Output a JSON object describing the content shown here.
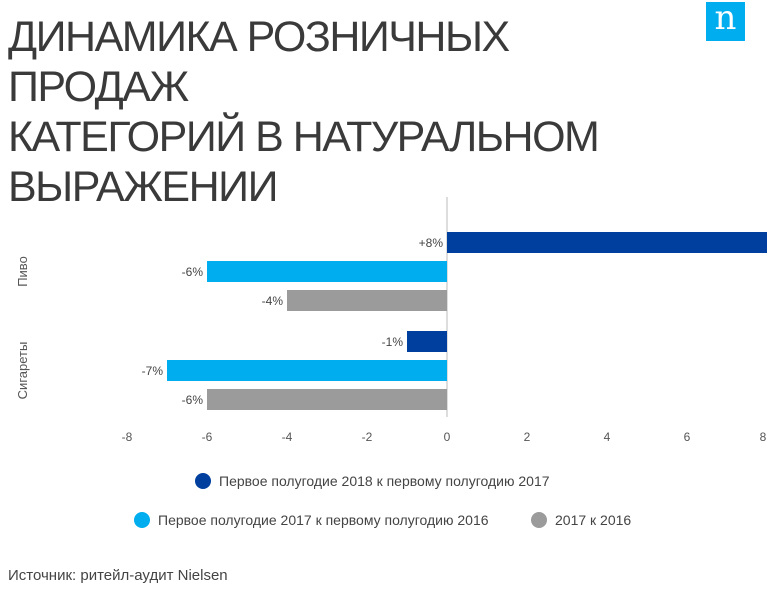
{
  "title_lines": [
    "ДИНАМИКА РОЗНИЧНЫХ ПРОДАЖ",
    "КАТЕГОРИЙ В НАТУРАЛЬНОМ",
    "ВЫРАЖЕНИИ"
  ],
  "logo_letter": "n",
  "source": "Источник: ритейл-аудит Nielsen",
  "chart_data": {
    "type": "bar",
    "orientation": "horizontal",
    "categories": [
      "Пиво",
      "Сигареты"
    ],
    "series": [
      {
        "name": "Первое полугодие 2018 к первому полугодию 2017",
        "color": "#003f9e",
        "values": [
          8,
          -1
        ],
        "labels": [
          "+8%",
          "-1%"
        ]
      },
      {
        "name": "Первое полугодие 2017 к первому полугодию 2016",
        "color": "#00aeef",
        "values": [
          -6,
          -7
        ],
        "labels": [
          "-6%",
          "-7%"
        ]
      },
      {
        "name": "2017 к 2016",
        "color": "#9b9b9b",
        "values": [
          -4,
          -6
        ],
        "labels": [
          "-4%",
          "-6%"
        ]
      }
    ],
    "xlim": [
      -8,
      8
    ],
    "xticks": [
      -8,
      -6,
      -4,
      -2,
      0,
      2,
      4,
      6,
      8
    ],
    "grid": false,
    "legend_position": "bottom"
  }
}
